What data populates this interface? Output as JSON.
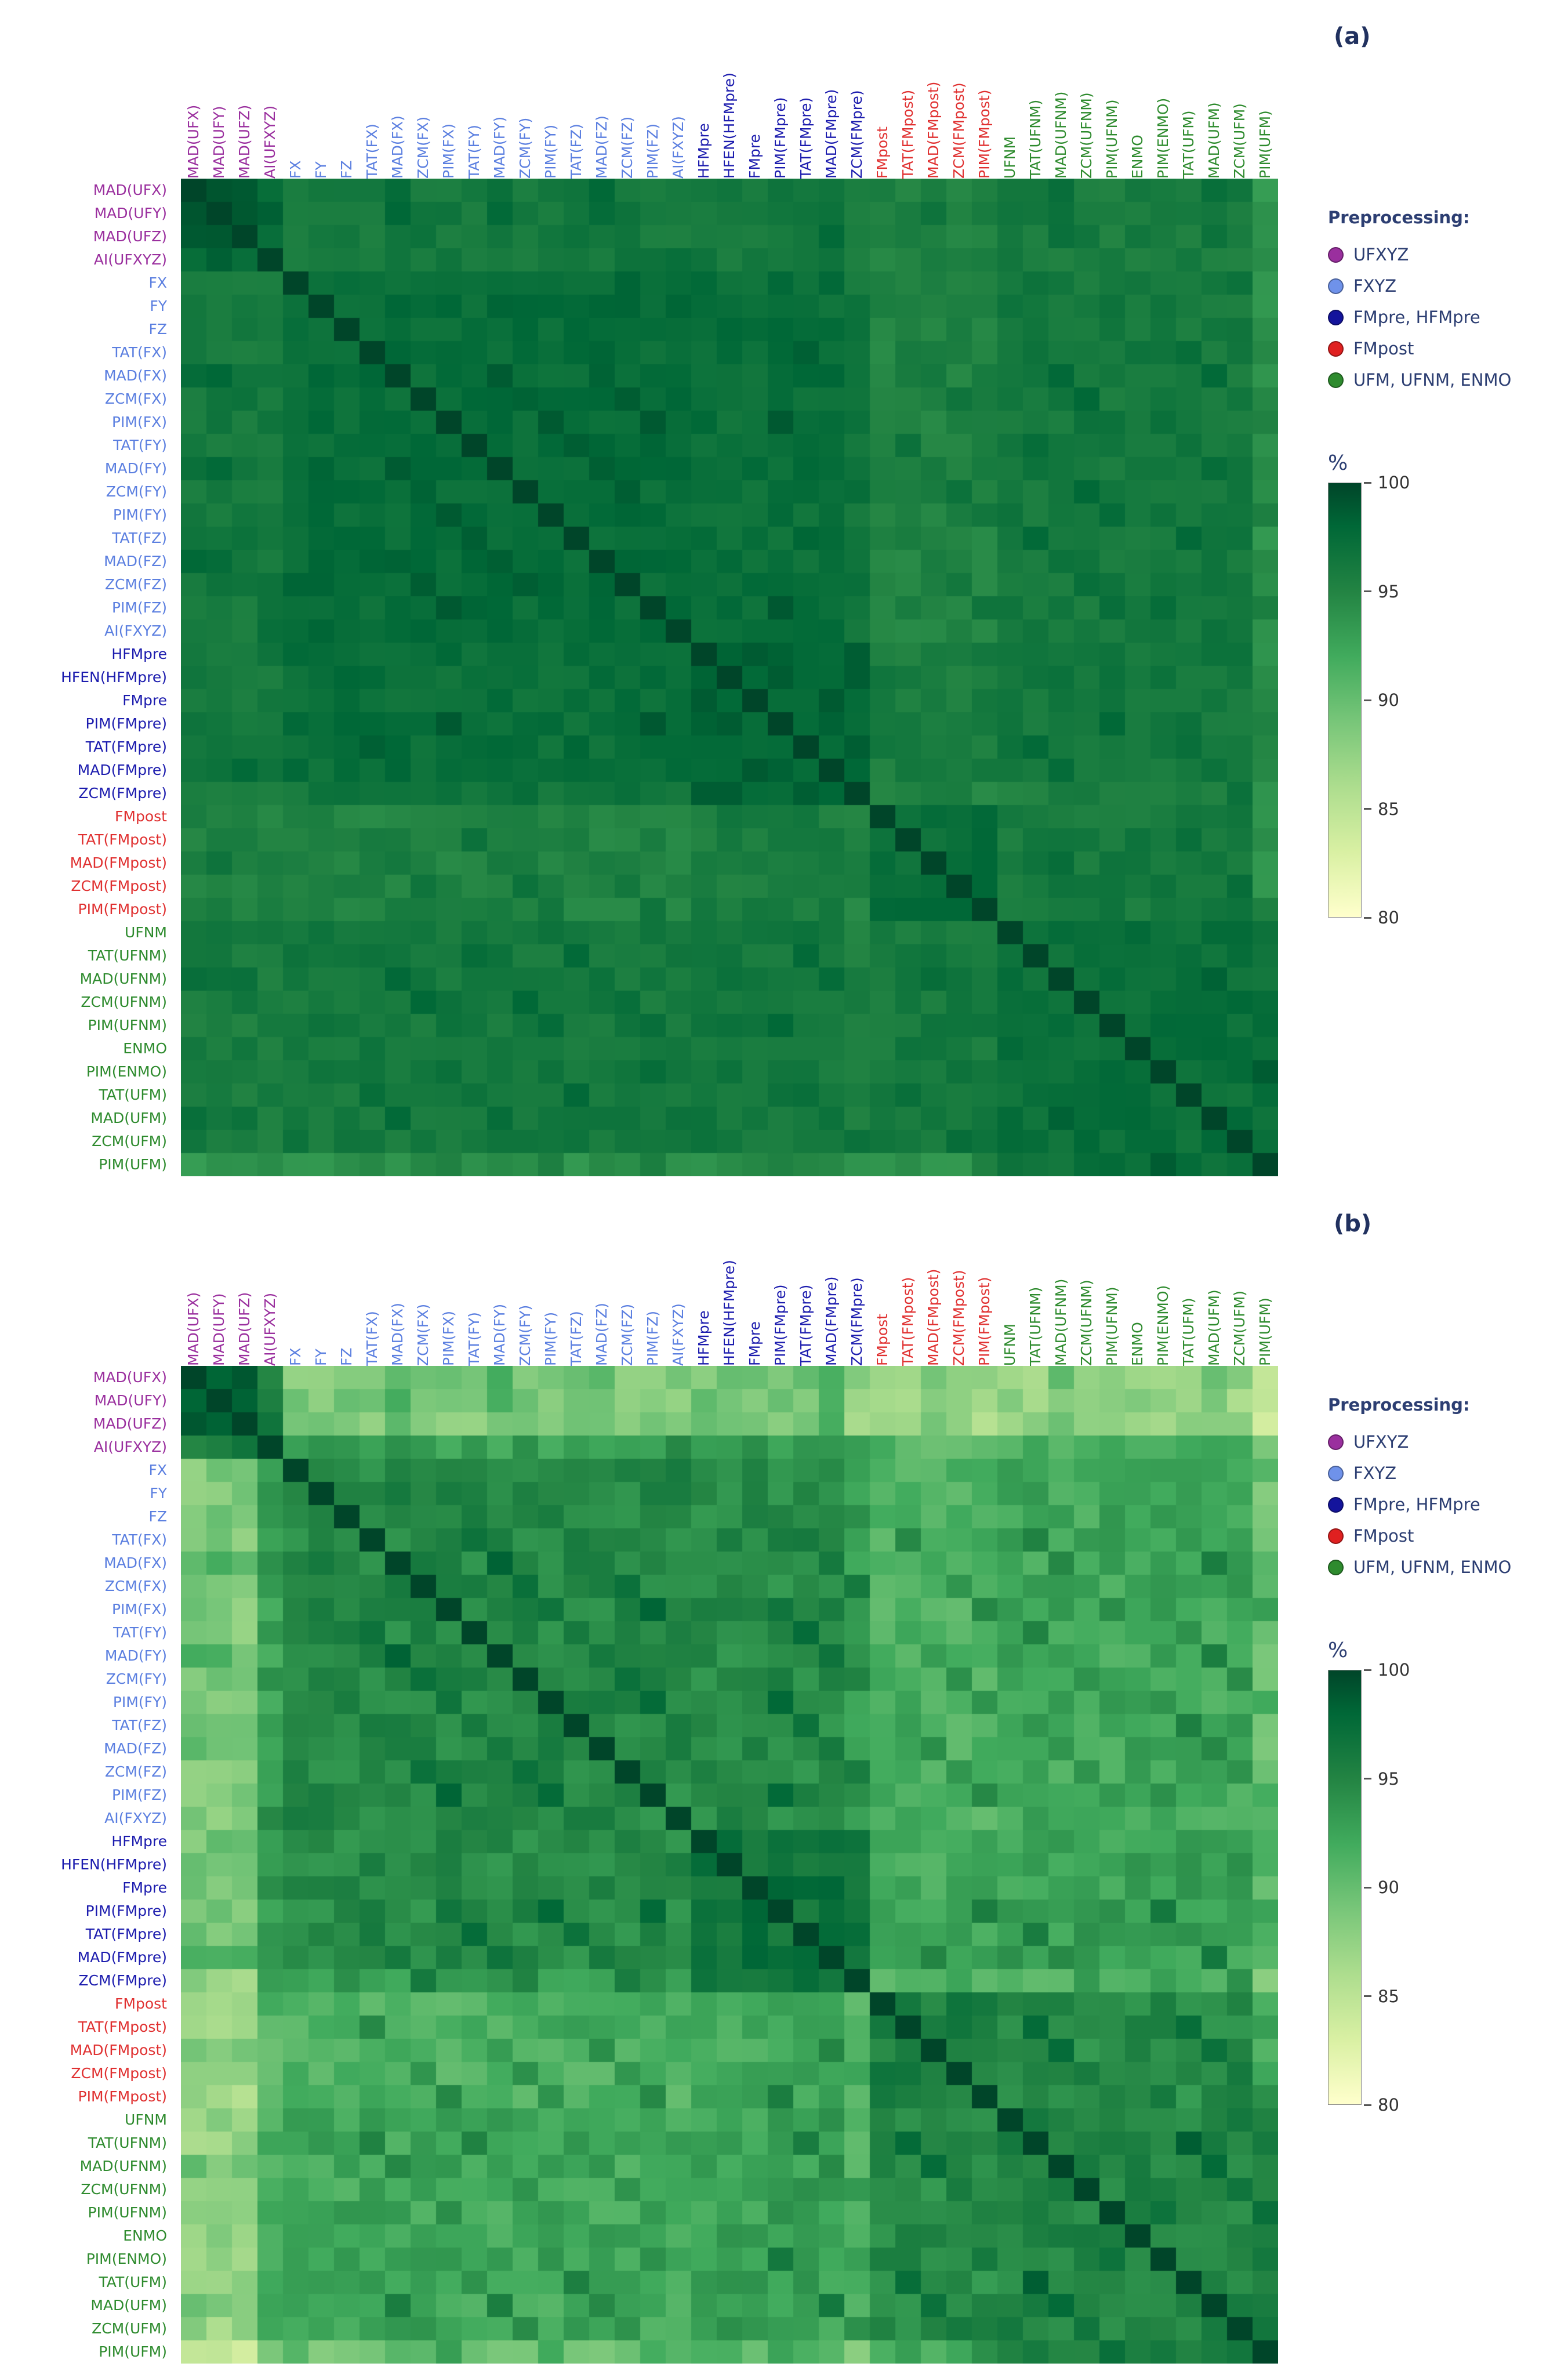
{
  "chart_data": {
    "type": "heatmap",
    "description": "Two 43x43 similarity matrices (%) comparing accelerometer signal metrics, colored by YlGn scale from 80% (light yellow) to 100% (dark green).",
    "diag_value": 100,
    "labels": [
      {
        "text": "MAD(UFX)",
        "group": "UFXYZ"
      },
      {
        "text": "MAD(UFY)",
        "group": "UFXYZ"
      },
      {
        "text": "MAD(UFZ)",
        "group": "UFXYZ"
      },
      {
        "text": "AI(UFXYZ)",
        "group": "UFXYZ"
      },
      {
        "text": "FX",
        "group": "FXYZ"
      },
      {
        "text": "FY",
        "group": "FXYZ"
      },
      {
        "text": "FZ",
        "group": "FXYZ"
      },
      {
        "text": "TAT(FX)",
        "group": "FXYZ"
      },
      {
        "text": "MAD(FX)",
        "group": "FXYZ"
      },
      {
        "text": "ZCM(FX)",
        "group": "FXYZ"
      },
      {
        "text": "PIM(FX)",
        "group": "FXYZ"
      },
      {
        "text": "TAT(FY)",
        "group": "FXYZ"
      },
      {
        "text": "MAD(FY)",
        "group": "FXYZ"
      },
      {
        "text": "ZCM(FY)",
        "group": "FXYZ"
      },
      {
        "text": "PIM(FY)",
        "group": "FXYZ"
      },
      {
        "text": "TAT(FZ)",
        "group": "FXYZ"
      },
      {
        "text": "MAD(FZ)",
        "group": "FXYZ"
      },
      {
        "text": "ZCM(FZ)",
        "group": "FXYZ"
      },
      {
        "text": "PIM(FZ)",
        "group": "FXYZ"
      },
      {
        "text": "AI(FXYZ)",
        "group": "FXYZ"
      },
      {
        "text": "HFMpre",
        "group": "FMpre"
      },
      {
        "text": "HFEN(HFMpre)",
        "group": "FMpre"
      },
      {
        "text": "FMpre",
        "group": "FMpre"
      },
      {
        "text": "PIM(FMpre)",
        "group": "FMpre"
      },
      {
        "text": "TAT(FMpre)",
        "group": "FMpre"
      },
      {
        "text": "MAD(FMpre)",
        "group": "FMpre"
      },
      {
        "text": "ZCM(FMpre)",
        "group": "FMpre"
      },
      {
        "text": "FMpost",
        "group": "FMpost"
      },
      {
        "text": "TAT(FMpost)",
        "group": "FMpost"
      },
      {
        "text": "MAD(FMpost)",
        "group": "FMpost"
      },
      {
        "text": "ZCM(FMpost)",
        "group": "FMpost"
      },
      {
        "text": "PIM(FMpost)",
        "group": "FMpost"
      },
      {
        "text": "UFNM",
        "group": "UFM"
      },
      {
        "text": "TAT(UFNM)",
        "group": "UFM"
      },
      {
        "text": "MAD(UFNM)",
        "group": "UFM"
      },
      {
        "text": "ZCM(UFNM)",
        "group": "UFM"
      },
      {
        "text": "PIM(UFNM)",
        "group": "UFM"
      },
      {
        "text": "ENMO",
        "group": "UFM"
      },
      {
        "text": "PIM(ENMO)",
        "group": "UFM"
      },
      {
        "text": "TAT(UFM)",
        "group": "UFM"
      },
      {
        "text": "MAD(UFM)",
        "group": "UFM"
      },
      {
        "text": "ZCM(UFM)",
        "group": "UFM"
      },
      {
        "text": "PIM(UFM)",
        "group": "UFM"
      }
    ],
    "label_groups": {
      "UFXYZ": {
        "color": "#9a2f9e"
      },
      "FXYZ": {
        "color": "#5b7fe0"
      },
      "FMpre": {
        "color": "#1c1cae"
      },
      "FMpost": {
        "color": "#e03131"
      },
      "UFM": {
        "color": "#2e8b2e"
      }
    },
    "panels": [
      {
        "tag": "(a)",
        "seed": 1,
        "jitter": 1.6,
        "same_stat_bonus": 1.0,
        "block_means": {
          "UFXYZ": {
            "UFXYZ": 97.8,
            "FXYZ": 96.2,
            "FMpre": 96.2,
            "FMpost": 95.2,
            "UFM": 95.8
          },
          "FXYZ": {
            "UFXYZ": 96.2,
            "FXYZ": 97.4,
            "FMpre": 97.2,
            "FMpost": 95.2,
            "UFM": 96.2
          },
          "FMpre": {
            "UFXYZ": 96.2,
            "FXYZ": 97.2,
            "FMpre": 98.2,
            "FMpost": 95.8,
            "UFM": 96.3
          },
          "FMpost": {
            "UFXYZ": 95.2,
            "FXYZ": 95.2,
            "FMpre": 95.8,
            "FMpost": 97.3,
            "UFM": 96.1
          },
          "UFM": {
            "UFXYZ": 95.8,
            "FXYZ": 96.2,
            "FMpre": 96.3,
            "FMpost": 96.1,
            "UFM": 97.1
          }
        },
        "row_offsets": {
          "PIM(UFM)": -2.0,
          "ZCM(FMpre)": -0.8
        }
      },
      {
        "tag": "(b)",
        "seed": 2,
        "jitter": 2.8,
        "same_stat_bonus": 2.2,
        "block_means": {
          "UFXYZ": {
            "UFXYZ": 96.0,
            "FXYZ": 92.0,
            "FMpre": 92.4,
            "FMpost": 90.2,
            "UFM": 90.6
          },
          "FXYZ": {
            "UFXYZ": 92.0,
            "FXYZ": 94.8,
            "FMpre": 94.6,
            "FMpost": 91.4,
            "UFM": 92.2
          },
          "FMpre": {
            "UFXYZ": 92.4,
            "FXYZ": 94.6,
            "FMpre": 97.0,
            "FMpost": 92.2,
            "UFM": 92.8
          },
          "FMpost": {
            "UFXYZ": 90.2,
            "FXYZ": 91.4,
            "FMpre": 92.2,
            "FMpost": 95.6,
            "UFM": 94.4
          },
          "UFM": {
            "UFXYZ": 90.6,
            "FXYZ": 92.2,
            "FMpre": 92.8,
            "FMpost": 94.4,
            "UFM": 95.2
          }
        },
        "row_offsets": {
          "MAD(UFX)": -3.4,
          "MAD(UFY)": -3.4,
          "MAD(UFZ)": -3.8,
          "AI(UFXYZ)": 0.8,
          "PIM(UFM)": -2.6,
          "ZCM(FMpre)": -1.2
        }
      }
    ],
    "legend": {
      "title": "Preprocessing:",
      "items": [
        {
          "label": "UFXYZ",
          "color": "#9a2f9e"
        },
        {
          "label": "FXYZ",
          "color": "#6f92ea"
        },
        {
          "label": "FMpre, HFMpre",
          "color": "#14149c"
        },
        {
          "label": "FMpost",
          "color": "#e02020"
        },
        {
          "label": "UFM, UFNM, ENMO",
          "color": "#2e8b2e"
        }
      ]
    },
    "colorbar": {
      "label": "%",
      "min": 80,
      "max": 100,
      "ticks": [
        100,
        95,
        90,
        85,
        80
      ],
      "stops": [
        [
          80,
          "#ffffcc"
        ],
        [
          83,
          "#d9f0a3"
        ],
        [
          86,
          "#addd8e"
        ],
        [
          89,
          "#78c679"
        ],
        [
          92,
          "#41ab5d"
        ],
        [
          95,
          "#238443"
        ],
        [
          98,
          "#006837"
        ],
        [
          100,
          "#004529"
        ]
      ]
    }
  }
}
